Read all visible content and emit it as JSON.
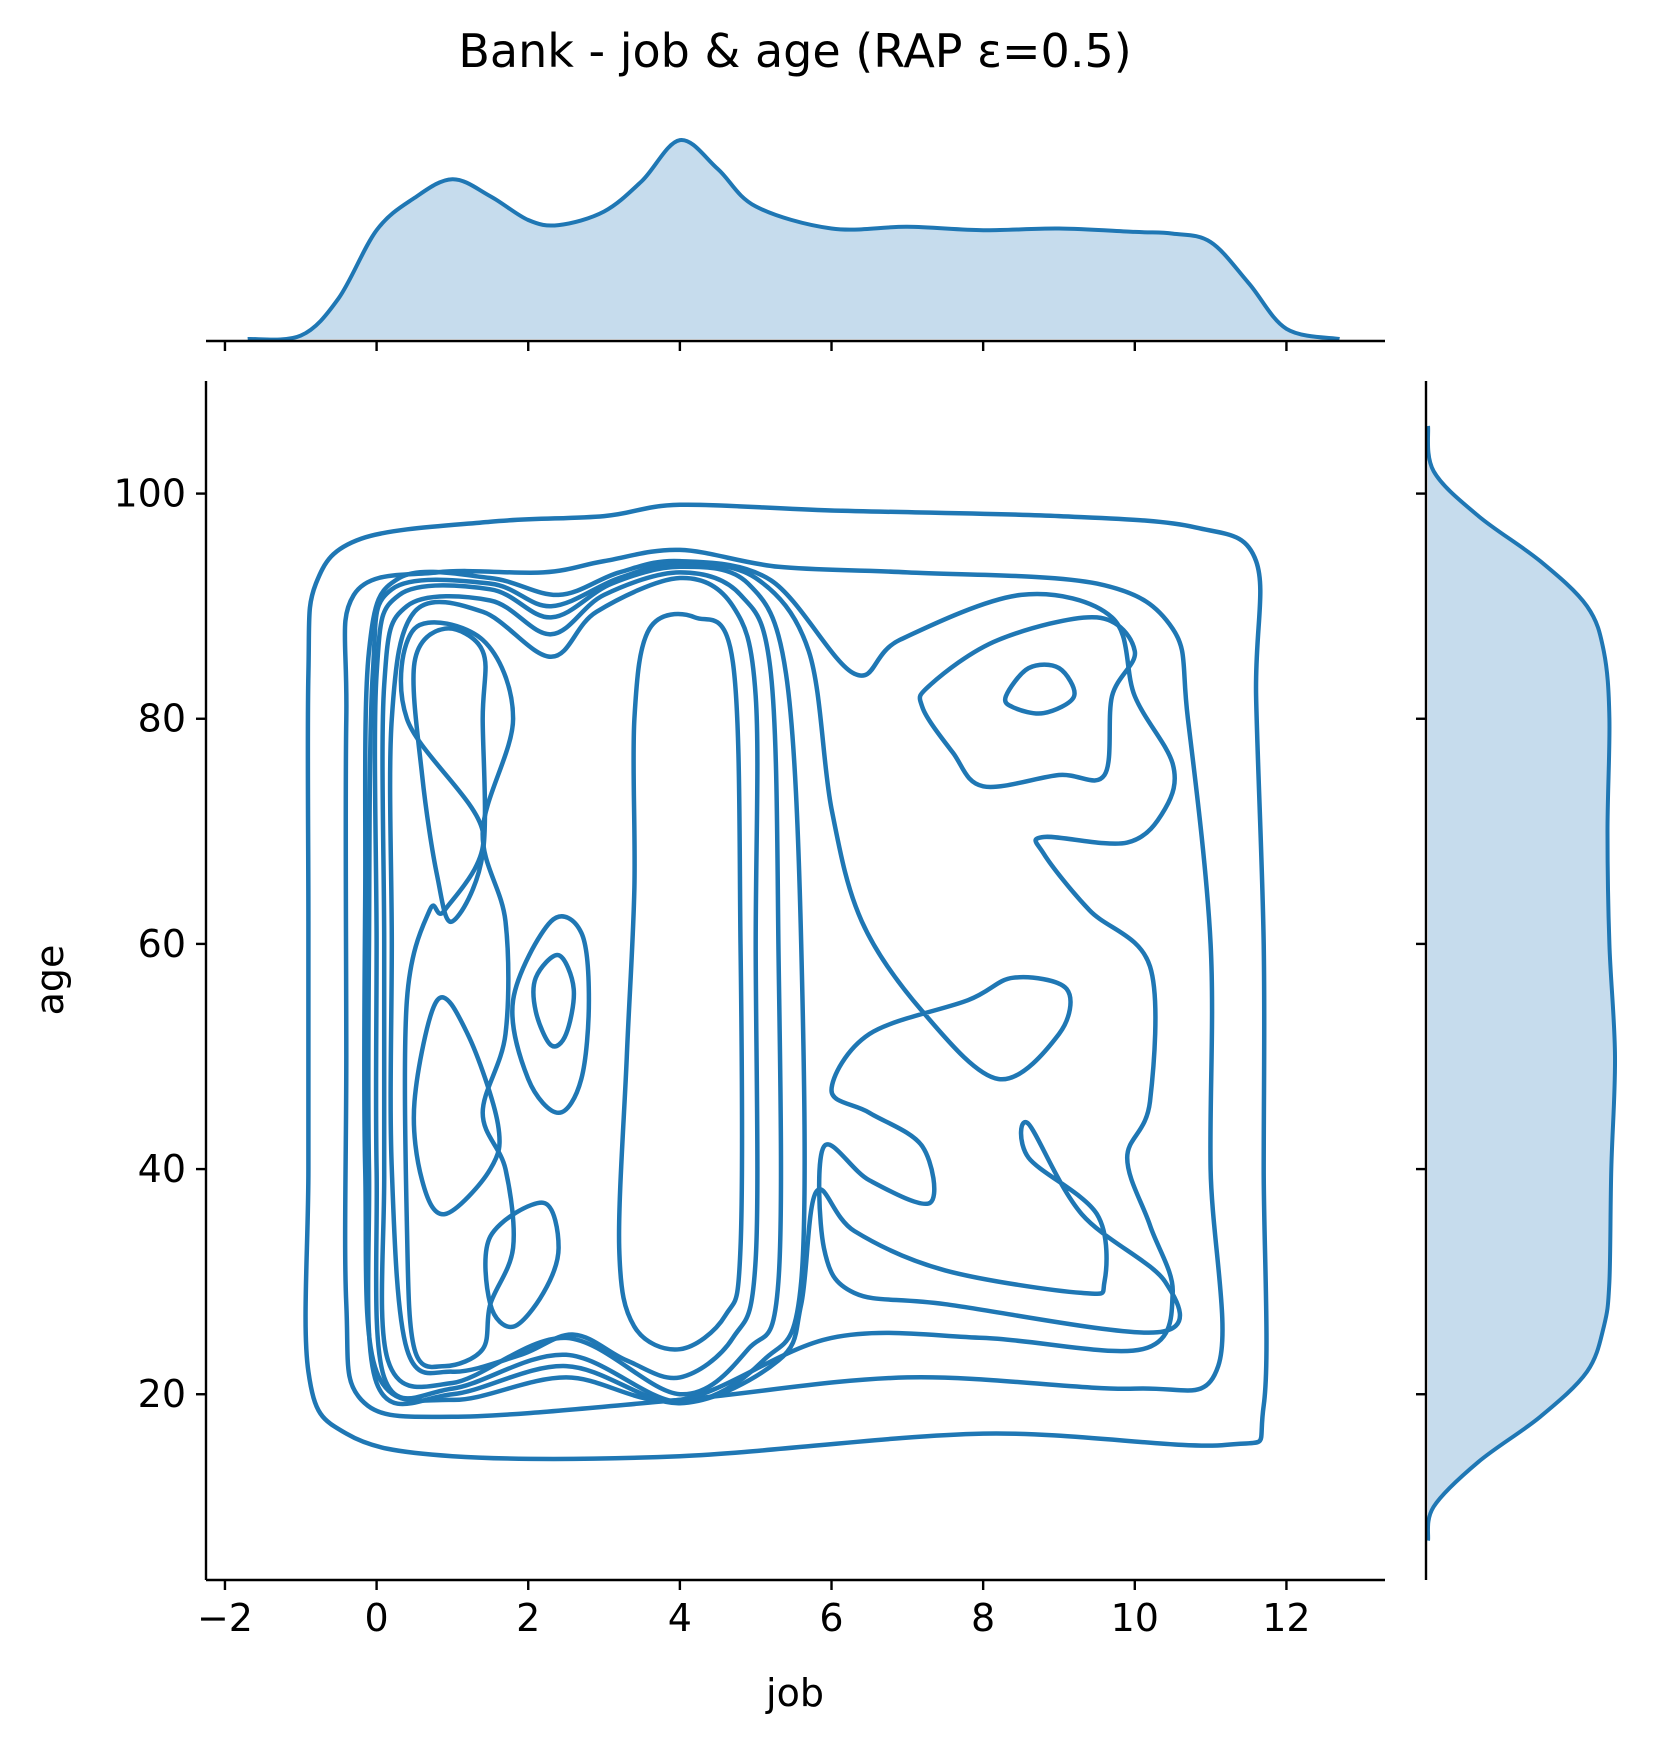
{
  "chart_data": {
    "type": "kde-joint",
    "title": "Bank - job & age (RAP ε=0.5)",
    "xlabel": "job",
    "ylabel": "age",
    "xlim": [
      -2.25,
      13.3
    ],
    "ylim": [
      3.5,
      110
    ],
    "x_ticks": [
      -2,
      0,
      2,
      4,
      6,
      8,
      10,
      12
    ],
    "x_tick_labels": [
      "−2",
      "0",
      "2",
      "4",
      "6",
      "8",
      "10",
      "12"
    ],
    "y_ticks": [
      20,
      40,
      60,
      80,
      100
    ],
    "y_tick_labels": [
      "20",
      "40",
      "60",
      "80",
      "100"
    ],
    "color": "#1f77b4",
    "fill_color": "#c6dced",
    "marginal_x": {
      "x": [
        -1.7,
        -1.0,
        -0.5,
        0.0,
        0.5,
        1.0,
        1.5,
        2.0,
        2.4,
        3.0,
        3.5,
        4.0,
        4.5,
        5.0,
        6.0,
        7.0,
        8.0,
        9.0,
        10.0,
        10.5,
        11.0,
        11.5,
        12.0,
        12.7
      ],
      "density": [
        0.0,
        0.02,
        0.24,
        0.64,
        0.83,
        0.94,
        0.84,
        0.7,
        0.67,
        0.75,
        0.93,
        1.17,
        1.0,
        0.78,
        0.65,
        0.66,
        0.64,
        0.65,
        0.63,
        0.62,
        0.57,
        0.33,
        0.06,
        0.0
      ]
    },
    "marginal_y": {
      "y": [
        7,
        10,
        14,
        18,
        22,
        26,
        30,
        40,
        50,
        60,
        70,
        80,
        86,
        90,
        94,
        98,
        102,
        106
      ],
      "density": [
        0.0,
        0.03,
        0.27,
        0.6,
        0.85,
        0.94,
        0.97,
        0.98,
        1.0,
        0.97,
        0.96,
        0.97,
        0.94,
        0.85,
        0.6,
        0.27,
        0.03,
        0.0
      ]
    },
    "contours": [
      [
        [
          -0.9,
          84
        ],
        [
          -0.8,
          92
        ],
        [
          -0.2,
          96
        ],
        [
          1.5,
          97.5
        ],
        [
          3.0,
          98
        ],
        [
          4.0,
          99
        ],
        [
          6.0,
          98.5
        ],
        [
          9.0,
          98
        ],
        [
          10.8,
          97
        ],
        [
          11.6,
          94
        ],
        [
          11.6,
          82
        ],
        [
          11.7,
          60
        ],
        [
          11.7,
          40
        ],
        [
          11.7,
          19
        ],
        [
          11.2,
          15.5
        ],
        [
          8.0,
          16.5
        ],
        [
          4.0,
          14.5
        ],
        [
          1.0,
          14.5
        ],
        [
          -0.4,
          16.5
        ],
        [
          -0.9,
          22
        ],
        [
          -0.9,
          40
        ],
        [
          -0.9,
          62
        ]
      ],
      [
        [
          -0.4,
          80
        ],
        [
          -0.3,
          91
        ],
        [
          0.8,
          93
        ],
        [
          2.2,
          93
        ],
        [
          3.0,
          94
        ],
        [
          4.0,
          95
        ],
        [
          5.3,
          93.5
        ],
        [
          7.0,
          93
        ],
        [
          9.5,
          92
        ],
        [
          10.5,
          88
        ],
        [
          10.7,
          80
        ],
        [
          11.0,
          60
        ],
        [
          11.0,
          40
        ],
        [
          11.1,
          22.5
        ],
        [
          10.0,
          20.5
        ],
        [
          7.0,
          21.5
        ],
        [
          4.0,
          19.5
        ],
        [
          1.0,
          18
        ],
        [
          -0.2,
          19.5
        ],
        [
          -0.4,
          28
        ],
        [
          -0.4,
          50
        ]
      ],
      [
        [
          -0.1,
          86
        ],
        [
          0.3,
          92.5
        ],
        [
          1.5,
          92.5
        ],
        [
          2.4,
          91
        ],
        [
          3.2,
          93
        ],
        [
          4.0,
          94
        ],
        [
          5.2,
          92.3
        ],
        [
          6.3,
          84
        ],
        [
          6.9,
          87
        ],
        [
          8.5,
          91
        ],
        [
          9.7,
          89
        ],
        [
          10.0,
          82
        ],
        [
          10.5,
          76
        ],
        [
          10.4,
          72
        ],
        [
          9.9,
          69
        ],
        [
          8.8,
          69.5
        ],
        [
          8.8,
          68
        ],
        [
          9.4,
          63
        ],
        [
          10.2,
          58
        ],
        [
          10.2,
          46
        ],
        [
          9.9,
          41
        ],
        [
          10.2,
          35
        ],
        [
          10.5,
          29
        ],
        [
          10.1,
          24
        ],
        [
          8.0,
          25
        ],
        [
          6.0,
          25
        ],
        [
          4.0,
          19.5
        ],
        [
          2.5,
          21.5
        ],
        [
          1.0,
          19.5
        ],
        [
          0.0,
          22
        ],
        [
          -0.15,
          40
        ],
        [
          -0.15,
          64
        ]
      ],
      [
        [
          -0.05,
          84
        ],
        [
          0.2,
          91.5
        ],
        [
          1.5,
          92
        ],
        [
          2.3,
          90
        ],
        [
          3.2,
          92.5
        ],
        [
          4.0,
          93.8
        ],
        [
          5.0,
          92.5
        ],
        [
          5.7,
          86
        ],
        [
          6.0,
          72
        ],
        [
          6.4,
          62
        ],
        [
          7.2,
          54
        ],
        [
          8.2,
          48
        ],
        [
          9.0,
          52
        ],
        [
          9.1,
          56
        ],
        [
          8.4,
          57
        ],
        [
          7.8,
          55
        ],
        [
          6.5,
          52
        ],
        [
          6.0,
          47
        ],
        [
          6.5,
          45
        ],
        [
          7.2,
          42
        ],
        [
          7.3,
          37
        ],
        [
          6.5,
          39
        ],
        [
          5.9,
          42
        ],
        [
          5.9,
          33
        ],
        [
          6.3,
          29
        ],
        [
          7.5,
          28
        ],
        [
          10.3,
          25.5
        ],
        [
          10.4,
          30
        ],
        [
          9.3,
          36
        ],
        [
          8.6,
          44
        ],
        [
          8.6,
          41
        ],
        [
          9.5,
          36
        ],
        [
          9.6,
          30
        ],
        [
          9.3,
          29
        ],
        [
          7.5,
          31
        ],
        [
          6.3,
          34.5
        ],
        [
          5.8,
          38
        ],
        [
          5.6,
          28
        ],
        [
          5.3,
          23
        ],
        [
          4.0,
          19.2
        ],
        [
          2.5,
          22.5
        ],
        [
          1.0,
          20
        ],
        [
          0.0,
          21
        ],
        [
          -0.1,
          40
        ],
        [
          -0.1,
          60
        ]
      ],
      [
        [
          0.0,
          84
        ],
        [
          0.3,
          91
        ],
        [
          1.5,
          91.5
        ],
        [
          2.3,
          89
        ],
        [
          3.1,
          92
        ],
        [
          4.0,
          93.5
        ],
        [
          4.9,
          92
        ],
        [
          5.4,
          84
        ],
        [
          5.6,
          60
        ],
        [
          5.6,
          30
        ],
        [
          5.1,
          23
        ],
        [
          4.0,
          19.3
        ],
        [
          2.5,
          23.5
        ],
        [
          1.0,
          20.5
        ],
        [
          0.1,
          21.5
        ],
        [
          0.0,
          40
        ],
        [
          0.0,
          60
        ]
      ],
      [
        [
          0.1,
          83
        ],
        [
          0.4,
          90
        ],
        [
          1.5,
          90.5
        ],
        [
          2.3,
          87.5
        ],
        [
          3.0,
          91
        ],
        [
          4.0,
          93
        ],
        [
          4.8,
          91
        ],
        [
          5.2,
          84
        ],
        [
          5.3,
          60
        ],
        [
          5.3,
          30
        ],
        [
          4.9,
          24
        ],
        [
          4.0,
          20
        ],
        [
          2.5,
          25
        ],
        [
          1.0,
          21
        ],
        [
          0.15,
          23
        ],
        [
          0.1,
          40
        ],
        [
          0.1,
          60
        ]
      ],
      [
        [
          0.2,
          80
        ],
        [
          0.5,
          89.5
        ],
        [
          1.4,
          89.5
        ],
        [
          2.3,
          85.5
        ],
        [
          2.9,
          89.5
        ],
        [
          4.0,
          92.5
        ],
        [
          4.7,
          90
        ],
        [
          5.0,
          82
        ],
        [
          5.0,
          60
        ],
        [
          5.0,
          32
        ],
        [
          4.7,
          25
        ],
        [
          4.0,
          21.5
        ],
        [
          3.3,
          23
        ],
        [
          2.6,
          25.3
        ],
        [
          1.9,
          23.5
        ],
        [
          1.0,
          22
        ],
        [
          0.4,
          24
        ],
        [
          0.2,
          40
        ],
        [
          0.2,
          60
        ]
      ],
      [
        [
          0.4,
          80
        ],
        [
          0.5,
          88
        ],
        [
          1.4,
          87
        ],
        [
          1.8,
          80
        ],
        [
          1.4,
          70
        ],
        [
          1.7,
          62
        ],
        [
          1.7,
          52
        ],
        [
          1.4,
          45
        ],
        [
          1.7,
          40
        ],
        [
          1.8,
          33
        ],
        [
          1.5,
          28
        ],
        [
          1.4,
          24
        ],
        [
          0.9,
          22.5
        ],
        [
          0.5,
          24
        ],
        [
          0.4,
          35
        ],
        [
          0.4,
          55
        ],
        [
          0.7,
          63
        ],
        [
          0.9,
          63
        ],
        [
          1.4,
          70
        ]
      ],
      [
        [
          3.4,
          80
        ],
        [
          3.6,
          88
        ],
        [
          4.2,
          89
        ],
        [
          4.7,
          85
        ],
        [
          4.8,
          60
        ],
        [
          4.8,
          33
        ],
        [
          4.6,
          27
        ],
        [
          4.0,
          24
        ],
        [
          3.4,
          26
        ],
        [
          3.2,
          33
        ],
        [
          3.3,
          50
        ],
        [
          3.4,
          65
        ]
      ],
      [
        [
          0.5,
          85
        ],
        [
          0.9,
          88
        ],
        [
          1.4,
          86
        ],
        [
          1.4,
          80
        ],
        [
          1.4,
          68
        ],
        [
          1.0,
          62
        ],
        [
          0.8,
          66
        ],
        [
          0.6,
          75
        ]
      ],
      [
        [
          0.5,
          46
        ],
        [
          0.8,
          55
        ],
        [
          1.2,
          52
        ],
        [
          1.6,
          44
        ],
        [
          1.5,
          40
        ],
        [
          0.9,
          36
        ],
        [
          0.6,
          39
        ]
      ],
      [
        [
          1.8,
          55
        ],
        [
          2.3,
          62
        ],
        [
          2.7,
          61
        ],
        [
          2.8,
          55
        ],
        [
          2.7,
          48
        ],
        [
          2.4,
          45
        ],
        [
          2.0,
          48
        ]
      ],
      [
        [
          2.1,
          57
        ],
        [
          2.4,
          59
        ],
        [
          2.6,
          56
        ],
        [
          2.5,
          52
        ],
        [
          2.3,
          51
        ],
        [
          2.1,
          54
        ]
      ],
      [
        [
          1.5,
          34
        ],
        [
          2.2,
          37
        ],
        [
          2.4,
          33
        ],
        [
          2.2,
          29
        ],
        [
          1.8,
          26
        ],
        [
          1.5,
          28
        ]
      ],
      [
        [
          7.3,
          83
        ],
        [
          8.2,
          87
        ],
        [
          9.5,
          89
        ],
        [
          10.0,
          86
        ],
        [
          9.7,
          82
        ],
        [
          9.6,
          75
        ],
        [
          9.0,
          75
        ],
        [
          8.0,
          74
        ],
        [
          7.6,
          77
        ],
        [
          7.2,
          81
        ]
      ],
      [
        [
          8.3,
          82
        ],
        [
          8.6,
          84.5
        ],
        [
          9.0,
          84.5
        ],
        [
          9.2,
          82
        ],
        [
          8.8,
          80.5
        ],
        [
          8.4,
          81
        ]
      ]
    ]
  }
}
